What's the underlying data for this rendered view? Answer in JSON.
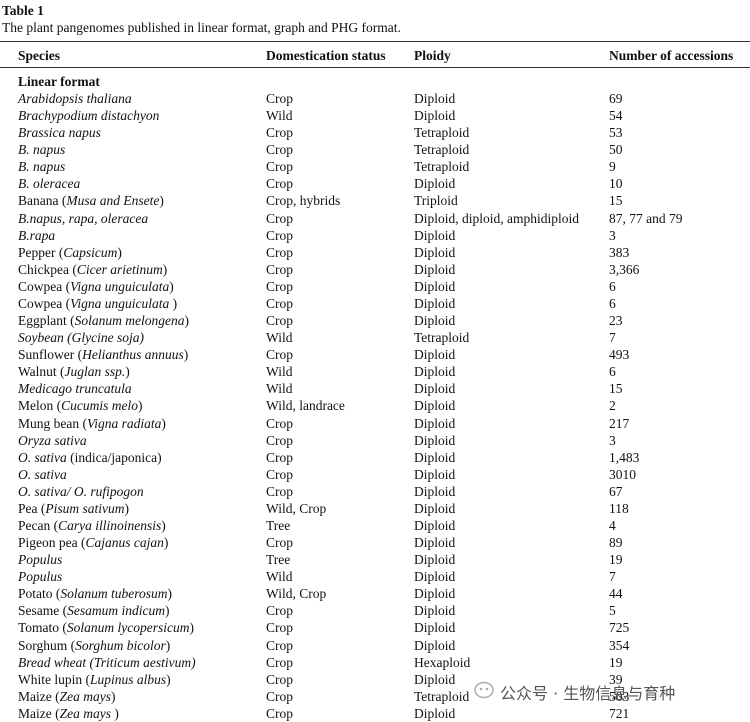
{
  "header": {
    "label": "Table 1",
    "caption": "The plant pangenomes published in linear format, graph and PHG format."
  },
  "table": {
    "columns": [
      "Species",
      "Domestication status",
      "Ploidy",
      "Number of accessions"
    ],
    "section": "Linear format",
    "rows": [
      [
        [
          {
            "italic": "Arabidopsis thaliana"
          }
        ],
        "Crop",
        "Diploid",
        "69"
      ],
      [
        [
          {
            "italic": "Brachypodium distachyon"
          }
        ],
        "Wild",
        "Diploid",
        "54"
      ],
      [
        [
          {
            "italic": "Brassica napus"
          }
        ],
        "Crop",
        "Tetraploid",
        "53"
      ],
      [
        [
          {
            "italic": "B. napus"
          }
        ],
        "Crop",
        "Tetraploid",
        "50"
      ],
      [
        [
          {
            "italic": "B. napus"
          }
        ],
        "Crop",
        "Tetraploid",
        "9"
      ],
      [
        [
          {
            "italic": "B. oleracea"
          }
        ],
        "Crop",
        "Diploid",
        "10"
      ],
      [
        [
          "Banana (",
          {
            "italic": "Musa and Ensete"
          },
          ")"
        ],
        "Crop, hybrids",
        "Triploid",
        "15"
      ],
      [
        [
          {
            "italic": "B.napus, rapa, oleracea"
          }
        ],
        "Crop",
        "Diploid, diploid, amphidiploid",
        "87, 77 and 79"
      ],
      [
        [
          {
            "italic": "B.rapa"
          }
        ],
        "Crop",
        "Diploid",
        "3"
      ],
      [
        [
          "Pepper (",
          {
            "italic": "Capsicum"
          },
          ")"
        ],
        "Crop",
        "Diploid",
        "383"
      ],
      [
        [
          "Chickpea (",
          {
            "italic": "Cicer arietinum"
          },
          ")"
        ],
        "Crop",
        "Diploid",
        "3,366"
      ],
      [
        [
          "Cowpea (",
          {
            "italic": "Vigna unguiculata"
          },
          ")"
        ],
        "Crop",
        "Diploid",
        "6"
      ],
      [
        [
          "Cowpea (",
          {
            "italic": "Vigna unguiculata"
          },
          " )"
        ],
        "Crop",
        "Diploid",
        "6"
      ],
      [
        [
          "Eggplant (",
          {
            "italic": "Solanum melongena"
          },
          ")"
        ],
        "Crop",
        "Diploid",
        "23"
      ],
      [
        [
          {
            "italic": "Soybean (Glycine soja)"
          }
        ],
        "Wild",
        "Tetraploid",
        "7"
      ],
      [
        [
          "Sunflower (",
          {
            "italic": "Helianthus annuus"
          },
          ")"
        ],
        "Crop",
        "Diploid",
        "493"
      ],
      [
        [
          "Walnut (",
          {
            "italic": "Juglan ssp."
          },
          ")"
        ],
        "Wild",
        "Diploid",
        "6"
      ],
      [
        [
          {
            "italic": "Medicago truncatula"
          }
        ],
        "Wild",
        "Diploid",
        "15"
      ],
      [
        [
          "Melon (",
          {
            "italic": "Cucumis melo"
          },
          ")"
        ],
        "Wild, landrace",
        "Diploid",
        "2"
      ],
      [
        [
          "Mung bean (",
          {
            "italic": "Vigna radiata"
          },
          ")"
        ],
        "Crop",
        "Diploid",
        "217"
      ],
      [
        [
          {
            "italic": "Oryza sativa"
          }
        ],
        "Crop",
        "Diploid",
        "3"
      ],
      [
        [
          {
            "italic": "O. sativa"
          },
          " (indica/japonica)"
        ],
        "Crop",
        "Diploid",
        "1,483"
      ],
      [
        [
          {
            "italic": "O. sativa"
          }
        ],
        "Crop",
        "Diploid",
        "3010"
      ],
      [
        [
          {
            "italic": "O. sativa/ O. rufipogon"
          }
        ],
        "Crop",
        "Diploid",
        "67"
      ],
      [
        [
          "Pea (",
          {
            "italic": "Pisum sativum"
          },
          ")"
        ],
        "Wild, Crop",
        "Diploid",
        "118"
      ],
      [
        [
          "Pecan (",
          {
            "italic": "Carya illinoinensis"
          },
          ")"
        ],
        "Tree",
        "Diploid",
        "4"
      ],
      [
        [
          "Pigeon pea (",
          {
            "italic": "Cajanus cajan"
          },
          ")"
        ],
        "Crop",
        "Diploid",
        "89"
      ],
      [
        [
          {
            "italic": "Populus"
          }
        ],
        "Tree",
        "Diploid",
        "19"
      ],
      [
        [
          {
            "italic": "Populus"
          }
        ],
        "Wild",
        "Diploid",
        "7"
      ],
      [
        [
          "Potato (",
          {
            "italic": "Solanum tuberosum"
          },
          ")"
        ],
        "Wild, Crop",
        "Diploid",
        "44"
      ],
      [
        [
          "Sesame (",
          {
            "italic": "Sesamum indicum"
          },
          ")"
        ],
        "Crop",
        "Diploid",
        "5"
      ],
      [
        [
          "Tomato (",
          {
            "italic": "Solanum lycopersicum"
          },
          ")"
        ],
        "Crop",
        "Diploid",
        "725"
      ],
      [
        [
          "Sorghum (",
          {
            "italic": "Sorghum bicolor"
          },
          ")"
        ],
        "Crop",
        "Diploid",
        "354"
      ],
      [
        [
          {
            "italic": "Bread wheat (Triticum aestivum)"
          }
        ],
        "Crop",
        "Hexaploid",
        "19"
      ],
      [
        [
          "White lupin (",
          {
            "italic": "Lupinus albus"
          },
          ")"
        ],
        "Crop",
        "Diploid",
        "39"
      ],
      [
        [
          "Maize (",
          {
            "italic": "Zea mays"
          },
          ")"
        ],
        "Crop",
        "Tetraploid",
        "503"
      ],
      [
        [
          "Maize (",
          {
            "italic": "Zea mays"
          },
          " )"
        ],
        "Crop",
        "Diploid",
        "721"
      ]
    ]
  },
  "watermark": "公众号 · 生物信息与育种"
}
